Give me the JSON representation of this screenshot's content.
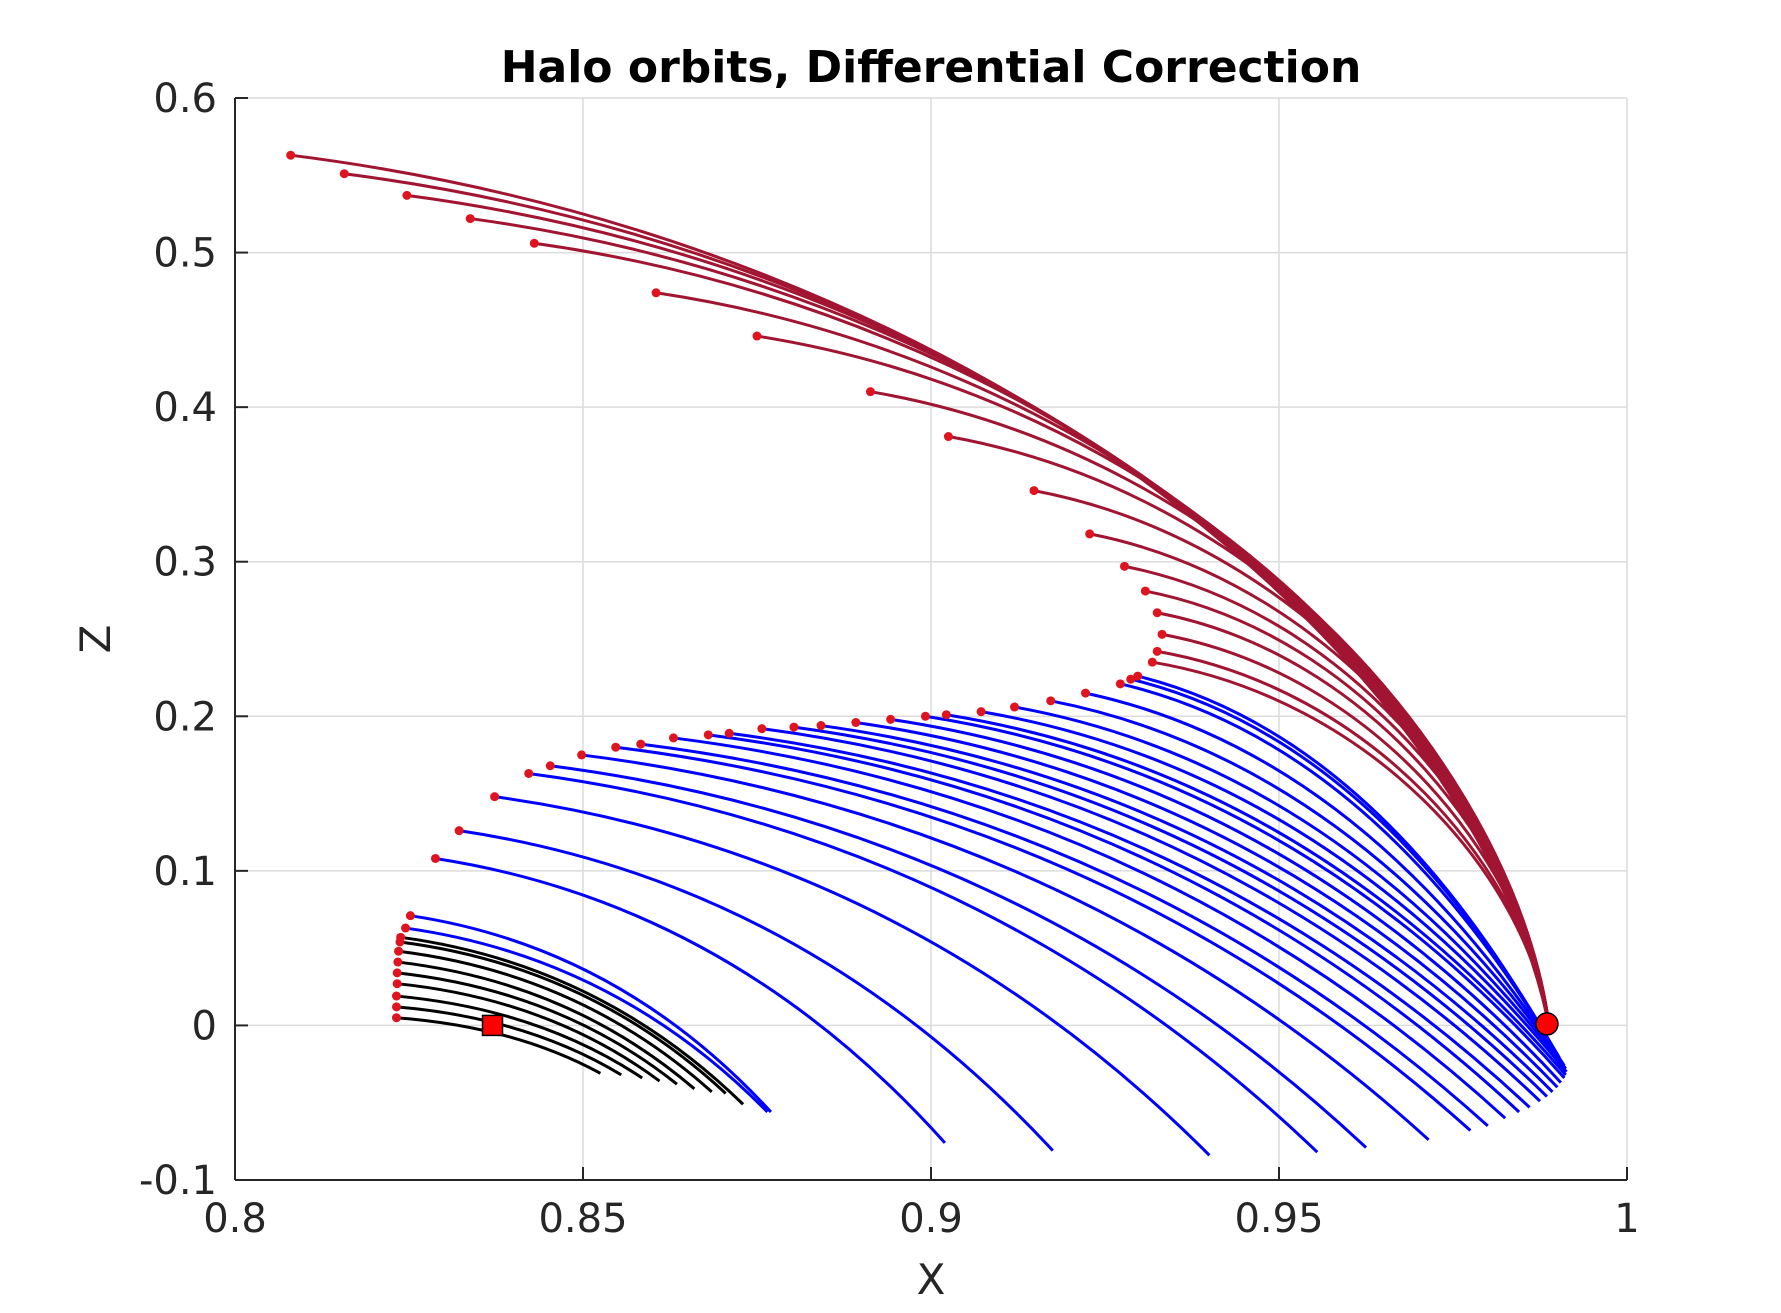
{
  "chart_data": {
    "type": "line",
    "title": "Halo orbits, Differential Correction",
    "xlabel": "X",
    "ylabel": "Z",
    "xlim": [
      0.8,
      1.0
    ],
    "ylim": [
      -0.1,
      0.6
    ],
    "xticks": [
      0.8,
      0.85,
      0.9,
      0.95,
      1.0
    ],
    "xtick_labels": [
      "0.8",
      "0.85",
      "0.9",
      "0.95",
      "1"
    ],
    "yticks": [
      -0.1,
      0,
      0.1,
      0.2,
      0.3,
      0.4,
      0.5,
      0.6
    ],
    "ytick_labels": [
      "-0.1",
      "0",
      "0.1",
      "0.2",
      "0.3",
      "0.4",
      "0.5",
      "0.6"
    ],
    "grid": true,
    "colors": {
      "black": "#000000",
      "blue": "#0000ff",
      "darkred": "#a11532",
      "marker": "#e0141e"
    },
    "converge_point": {
      "x": 0.9885,
      "y": 0.001
    },
    "square_marker": {
      "x": 0.837,
      "y": 0.0
    },
    "series": [
      {
        "color": "black",
        "start": [
          0.8232,
          0.005
        ],
        "end": [
          0.8525,
          -0.031
        ]
      },
      {
        "color": "black",
        "start": [
          0.8232,
          0.012
        ],
        "end": [
          0.8555,
          -0.032
        ]
      },
      {
        "color": "black",
        "start": [
          0.8232,
          0.019
        ],
        "end": [
          0.8585,
          -0.034
        ]
      },
      {
        "color": "black",
        "start": [
          0.8233,
          0.027
        ],
        "end": [
          0.861,
          -0.036
        ]
      },
      {
        "color": "black",
        "start": [
          0.8233,
          0.034
        ],
        "end": [
          0.8635,
          -0.038
        ]
      },
      {
        "color": "black",
        "start": [
          0.8234,
          0.041
        ],
        "end": [
          0.866,
          -0.041
        ]
      },
      {
        "color": "black",
        "start": [
          0.8235,
          0.048
        ],
        "end": [
          0.8685,
          -0.043
        ]
      },
      {
        "color": "black",
        "start": [
          0.8237,
          0.054
        ],
        "end": [
          0.8705,
          -0.044
        ]
      },
      {
        "color": "black",
        "start": [
          0.8238,
          0.057
        ],
        "end": [
          0.873,
          -0.051
        ]
      },
      {
        "color": "blue",
        "start": [
          0.8245,
          0.063
        ],
        "end": [
          0.8765,
          -0.056
        ]
      },
      {
        "color": "blue",
        "start": [
          0.8252,
          0.071
        ],
        "end": [
          0.877,
          -0.056
        ]
      },
      {
        "color": "blue",
        "start": [
          0.8288,
          0.108
        ],
        "end": [
          0.902,
          -0.076
        ]
      },
      {
        "color": "blue",
        "start": [
          0.8322,
          0.126
        ],
        "end": [
          0.9175,
          -0.081
        ]
      },
      {
        "color": "blue",
        "start": [
          0.8373,
          0.148
        ],
        "end": [
          0.94,
          -0.084
        ]
      },
      {
        "color": "blue",
        "start": [
          0.8422,
          0.163
        ],
        "end": [
          0.9555,
          -0.082
        ]
      },
      {
        "color": "blue",
        "start": [
          0.8453,
          0.168
        ],
        "end": [
          0.9625,
          -0.079
        ]
      },
      {
        "color": "blue",
        "start": [
          0.8498,
          0.175
        ],
        "end": [
          0.9715,
          -0.074
        ]
      },
      {
        "color": "blue",
        "start": [
          0.8547,
          0.18
        ],
        "end": [
          0.9775,
          -0.068
        ]
      },
      {
        "color": "blue",
        "start": [
          0.8583,
          0.182
        ],
        "end": [
          0.98,
          -0.065
        ]
      },
      {
        "color": "blue",
        "start": [
          0.863,
          0.186
        ],
        "end": [
          0.9825,
          -0.06
        ]
      },
      {
        "color": "blue",
        "start": [
          0.868,
          0.188
        ],
        "end": [
          0.9845,
          -0.056
        ]
      },
      {
        "color": "blue",
        "start": [
          0.871,
          0.189
        ],
        "end": [
          0.986,
          -0.053
        ]
      },
      {
        "color": "blue",
        "start": [
          0.8757,
          0.192
        ],
        "end": [
          0.9875,
          -0.049
        ]
      },
      {
        "color": "blue",
        "start": [
          0.8803,
          0.193
        ],
        "end": [
          0.9885,
          -0.046
        ]
      },
      {
        "color": "blue",
        "start": [
          0.8842,
          0.194
        ],
        "end": [
          0.9893,
          -0.043
        ]
      },
      {
        "color": "blue",
        "start": [
          0.8892,
          0.196
        ],
        "end": [
          0.99,
          -0.04
        ]
      },
      {
        "color": "blue",
        "start": [
          0.8942,
          0.198
        ],
        "end": [
          0.9905,
          -0.037
        ]
      },
      {
        "color": "blue",
        "start": [
          0.8992,
          0.2
        ],
        "end": [
          0.991,
          -0.034
        ]
      },
      {
        "color": "blue",
        "start": [
          0.9022,
          0.201
        ],
        "end": [
          0.9912,
          -0.032
        ]
      },
      {
        "color": "blue",
        "start": [
          0.9072,
          0.203
        ],
        "end": [
          0.9913,
          -0.03
        ]
      },
      {
        "color": "blue",
        "start": [
          0.912,
          0.206
        ],
        "end": [
          0.9912,
          -0.028
        ]
      },
      {
        "color": "blue",
        "start": [
          0.9172,
          0.21
        ],
        "end": [
          0.991,
          -0.026
        ]
      },
      {
        "color": "blue",
        "start": [
          0.9222,
          0.215
        ],
        "end": [
          0.9907,
          -0.024
        ]
      },
      {
        "color": "blue",
        "start": [
          0.9272,
          0.221
        ],
        "end": [
          0.9903,
          -0.021
        ]
      },
      {
        "color": "blue",
        "start": [
          0.9287,
          0.224
        ],
        "end": [
          0.99,
          -0.019
        ]
      },
      {
        "color": "blue",
        "start": [
          0.9297,
          0.226
        ],
        "end": [
          0.9897,
          -0.018
        ]
      },
      {
        "color": "darkred",
        "start": [
          0.9318,
          0.235
        ],
        "end": [
          0.9888,
          0.0
        ]
      },
      {
        "color": "darkred",
        "start": [
          0.9325,
          0.242
        ],
        "end": [
          0.9888,
          0.0
        ]
      },
      {
        "color": "darkred",
        "start": [
          0.9332,
          0.253
        ],
        "end": [
          0.9888,
          0.0
        ]
      },
      {
        "color": "darkred",
        "start": [
          0.9325,
          0.267
        ],
        "end": [
          0.9888,
          0.0
        ]
      },
      {
        "color": "darkred",
        "start": [
          0.9308,
          0.281
        ],
        "end": [
          0.9888,
          0.0
        ]
      },
      {
        "color": "darkred",
        "start": [
          0.9278,
          0.297
        ],
        "end": [
          0.9888,
          0.0
        ]
      },
      {
        "color": "darkred",
        "start": [
          0.9228,
          0.318
        ],
        "end": [
          0.9888,
          0.0
        ]
      },
      {
        "color": "darkred",
        "start": [
          0.9148,
          0.346
        ],
        "end": [
          0.9888,
          0.0
        ]
      },
      {
        "color": "darkred",
        "start": [
          0.9025,
          0.381
        ],
        "end": [
          0.9888,
          0.0
        ]
      },
      {
        "color": "darkred",
        "start": [
          0.8913,
          0.41
        ],
        "end": [
          0.9888,
          0.0
        ]
      },
      {
        "color": "darkred",
        "start": [
          0.875,
          0.446
        ],
        "end": [
          0.9888,
          0.0
        ]
      },
      {
        "color": "darkred",
        "start": [
          0.8605,
          0.474
        ],
        "end": [
          0.9888,
          0.0
        ]
      },
      {
        "color": "darkred",
        "start": [
          0.843,
          0.506
        ],
        "end": [
          0.9888,
          0.0
        ]
      },
      {
        "color": "darkred",
        "start": [
          0.8338,
          0.522
        ],
        "end": [
          0.9888,
          0.0
        ]
      },
      {
        "color": "darkred",
        "start": [
          0.8247,
          0.537
        ],
        "end": [
          0.9888,
          0.0
        ]
      },
      {
        "color": "darkred",
        "start": [
          0.8157,
          0.551
        ],
        "end": [
          0.9888,
          0.0
        ]
      },
      {
        "color": "darkred",
        "start": [
          0.808,
          0.563
        ],
        "end": [
          0.9888,
          0.0
        ]
      }
    ]
  }
}
